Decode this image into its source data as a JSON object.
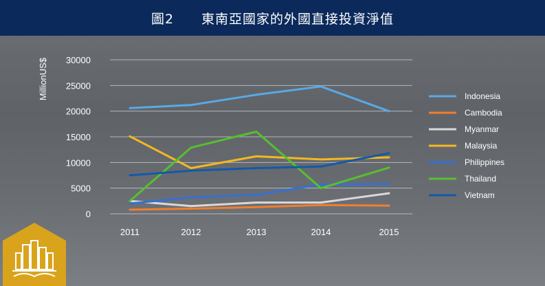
{
  "header": {
    "title": "圖2　　東南亞國家的外國直接投資淨值"
  },
  "chart_data": {
    "type": "line",
    "title": "東南亞國家的外國直接投資淨值",
    "ylabel": "MillionUS$",
    "xlabel": "",
    "x": [
      "2011",
      "2012",
      "2013",
      "2014",
      "2015"
    ],
    "ylim": [
      0,
      30000
    ],
    "yticks": [
      0,
      5000,
      10000,
      15000,
      20000,
      25000,
      30000
    ],
    "grid": "horizontal",
    "legend_position": "right",
    "series": [
      {
        "name": "Indonesia",
        "color": "#5aa9e6",
        "values": [
          20600,
          21200,
          23200,
          24800,
          20000
        ]
      },
      {
        "name": "Cambodia",
        "color": "#f07f2e",
        "values": [
          800,
          1000,
          1300,
          1700,
          1600
        ]
      },
      {
        "name": "Myanmar",
        "color": "#d9d9d9",
        "values": [
          2500,
          1500,
          2200,
          2200,
          4000
        ]
      },
      {
        "name": "Malaysia",
        "color": "#f5b820",
        "values": [
          15100,
          8900,
          11200,
          10600,
          11000
        ]
      },
      {
        "name": "Philippines",
        "color": "#3570d4",
        "values": [
          2000,
          3200,
          3700,
          5700,
          5800
        ]
      },
      {
        "name": "Thailand",
        "color": "#56c02e",
        "values": [
          2500,
          12900,
          16000,
          5000,
          9000
        ]
      },
      {
        "name": "Vietnam",
        "color": "#1459a6",
        "values": [
          7500,
          8400,
          8900,
          9200,
          11800
        ]
      }
    ]
  }
}
